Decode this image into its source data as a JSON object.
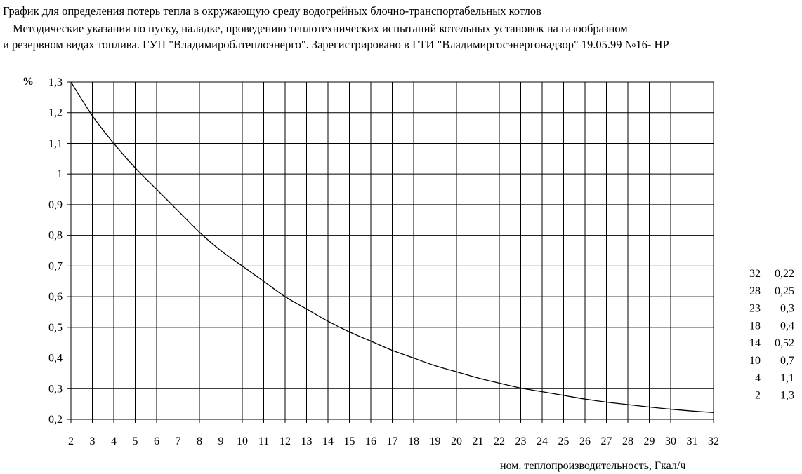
{
  "title_lines": [
    "График для определения потерь тепла в окружающую среду водогрейных блочно-транспортабельных котлов",
    "Методические указания по пуску, наладке, проведению теплотехнических испытаний котельных установок на газообразном",
    "и резервном видах топлива. ГУП \"Владимироблтеплоэнерго\". Зарегистрировано в ГТИ \"Владимиргосэнергонадзор\" 19.05.99 №16- НР"
  ],
  "chart_data": {
    "type": "line",
    "title": "График для определения потерь тепла в окружающую среду водогрейных блочно-транспортабельных котлов",
    "xlabel": "ном. теплопроизводительность, Гкал/ч",
    "ylabel": "%",
    "xlim": [
      2,
      32
    ],
    "ylim": [
      0.2,
      1.3
    ],
    "grid": true,
    "x_ticks": [
      "2",
      "3",
      "4",
      "5",
      "6",
      "7",
      "8",
      "9",
      "10",
      "11",
      "12",
      "13",
      "14",
      "15",
      "16",
      "17",
      "18",
      "19",
      "20",
      "21",
      "22",
      "23",
      "24",
      "25",
      "26",
      "27",
      "28",
      "29",
      "30",
      "31",
      "32"
    ],
    "y_ticks": [
      "0,2",
      "0,3",
      "0,4",
      "0,5",
      "0,6",
      "0,7",
      "0,8",
      "0,9",
      "1",
      "1,1",
      "1,2",
      "1,3"
    ],
    "series": [
      {
        "x": [
          2,
          3,
          4,
          5,
          6,
          7,
          8,
          9,
          10,
          11,
          12,
          13,
          14,
          15,
          16,
          17,
          18,
          19,
          20,
          21,
          22,
          23,
          24,
          25,
          26,
          27,
          28,
          29,
          30,
          31,
          32
        ],
        "y": [
          1.3,
          1.19,
          1.1,
          1.02,
          0.95,
          0.88,
          0.81,
          0.75,
          0.7,
          0.65,
          0.6,
          0.56,
          0.52,
          0.485,
          0.455,
          0.425,
          0.4,
          0.375,
          0.355,
          0.335,
          0.318,
          0.302,
          0.29,
          0.278,
          0.266,
          0.256,
          0.248,
          0.24,
          0.233,
          0.227,
          0.222
        ]
      }
    ],
    "table": [
      {
        "x": "32",
        "y": "0,22"
      },
      {
        "x": "28",
        "y": "0,25"
      },
      {
        "x": "23",
        "y": "0,3"
      },
      {
        "x": "18",
        "y": "0,4"
      },
      {
        "x": "14",
        "y": "0,52"
      },
      {
        "x": "10",
        "y": "0,7"
      },
      {
        "x": "4",
        "y": "1,1"
      },
      {
        "x": "2",
        "y": "1,3"
      }
    ]
  }
}
